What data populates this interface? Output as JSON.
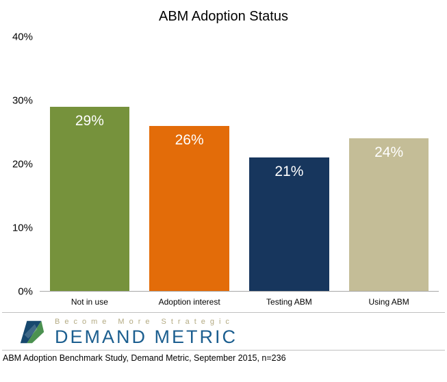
{
  "chart_data": {
    "type": "bar",
    "title": "ABM Adoption Status",
    "categories": [
      "Not in use",
      "Adoption interest",
      "Testing ABM",
      "Using ABM"
    ],
    "values": [
      29,
      26,
      21,
      24
    ],
    "data_labels": [
      "29%",
      "26%",
      "21%",
      "24%"
    ],
    "bar_colors": [
      "#76923c",
      "#e36c09",
      "#17365d",
      "#c4bd97"
    ],
    "xlabel": "",
    "ylabel": "",
    "ylim": [
      0,
      40
    ],
    "yticks": [
      "0%",
      "10%",
      "20%",
      "30%",
      "40%"
    ],
    "grid": false,
    "legend": false
  },
  "footer": {
    "tagline": "Become More Strategic",
    "brand": "DEMAND METRIC",
    "caption": "ABM Adoption Benchmark Study, Demand Metric, September 2015, n=236"
  },
  "colors": {
    "brand_blue": "#1b5e8f",
    "tagline_khaki": "#b3aa82",
    "axis_line": "#a6a6a6",
    "divider": "#bfbfbf"
  }
}
